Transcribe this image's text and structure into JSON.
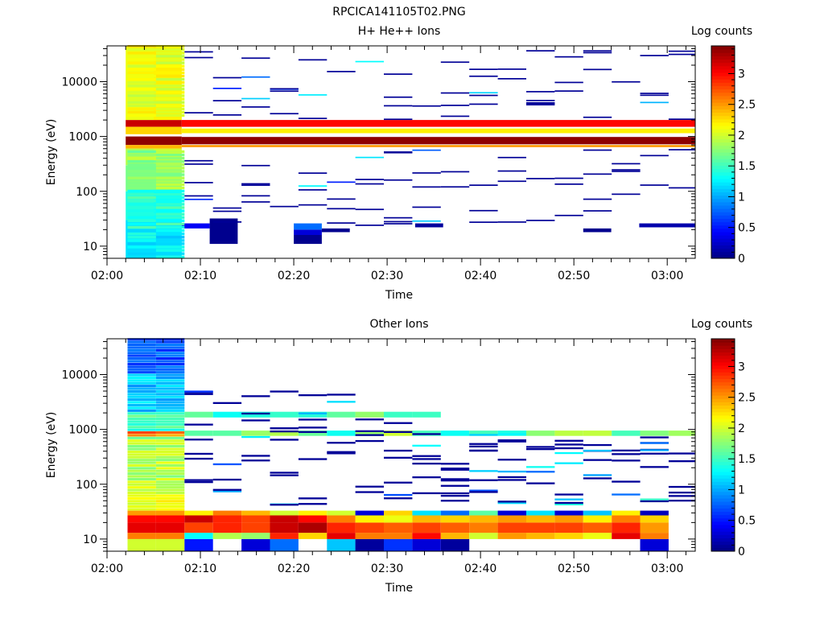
{
  "page_title": "RPCICA141105T02.PNG",
  "colors": {
    "colormap": "jet",
    "background": "#ffffff",
    "axis": "#000000"
  },
  "chart_data": [
    {
      "type": "heatmap",
      "title": "H+ He++ Ions",
      "xlabel": "Time",
      "ylabel": "Energy (eV)",
      "colorbar_label": "Log counts",
      "yscale": "log",
      "x_range": [
        "02:00",
        "03:03"
      ],
      "y_range_eV": [
        6,
        45000
      ],
      "color_range": [
        0,
        3.45
      ],
      "x_ticks": [
        "02:00",
        "02:10",
        "02:20",
        "02:30",
        "02:40",
        "02:50",
        "03:00"
      ],
      "y_ticks": [
        "10",
        "100",
        "1000",
        "10000"
      ],
      "colorbar_ticks": [
        "0",
        "0.5",
        "1",
        "1.5",
        "2",
        "2.5",
        "3"
      ],
      "columns": [
        {
          "start": "02:02",
          "end": "02:05",
          "bands": [
            [
              1500,
              2000,
              3.2
            ],
            [
              1100,
              1500,
              2.3
            ],
            [
              700,
              1000,
              3.4
            ],
            [
              600,
              700,
              2.4
            ],
            [
              300,
              600,
              1.9
            ],
            [
              100,
              300,
              1.7
            ],
            [
              30,
              100,
              1.4
            ],
            [
              6,
              30,
              1.2
            ],
            [
              2000,
              45000,
              2.1
            ]
          ]
        },
        {
          "start": "02:05",
          "end": "02:08",
          "bands": [
            [
              1500,
              2000,
              3.2
            ],
            [
              1100,
              1500,
              2.3
            ],
            [
              700,
              1000,
              3.4
            ],
            [
              600,
              700,
              2.4
            ],
            [
              300,
              600,
              2.0
            ],
            [
              100,
              300,
              1.7
            ],
            [
              30,
              100,
              1.3
            ],
            [
              6,
              30,
              1.2
            ],
            [
              2000,
              45000,
              2.2
            ]
          ]
        },
        {
          "start": "02:08",
          "end": "03:03",
          "bands": [
            [
              1500,
              2000,
              3.0
            ],
            [
              1150,
              1400,
              2.2
            ],
            [
              720,
              980,
              3.4
            ],
            [
              640,
              700,
              2.5
            ]
          ]
        },
        {
          "start": "02:11",
          "end": "02:14",
          "bands": [
            [
              11,
              32,
              0.05
            ]
          ]
        },
        {
          "start": "02:08",
          "end": "02:11",
          "bands": [
            [
              21,
              26,
              0.4
            ]
          ]
        },
        {
          "start": "02:20",
          "end": "02:23",
          "bands": [
            [
              11,
              16,
              0.05
            ],
            [
              16,
              20,
              0.3
            ],
            [
              20,
              26,
              0.8
            ]
          ]
        },
        {
          "start": "02:23",
          "end": "02:26",
          "bands": [
            [
              18,
              21,
              0.05
            ]
          ]
        },
        {
          "start": "02:33",
          "end": "02:36",
          "bands": [
            [
              22,
              26,
              0.1
            ]
          ]
        },
        {
          "start": "02:51",
          "end": "02:54",
          "bands": [
            [
              18,
              21,
              0.05
            ]
          ]
        },
        {
          "start": "02:57",
          "end": "03:03",
          "bands": [
            [
              22,
              26,
              0.15
            ]
          ]
        }
      ]
    },
    {
      "type": "heatmap",
      "title": "Other Ions",
      "xlabel": "Time",
      "ylabel": "Energy (eV)",
      "colorbar_label": "Log counts",
      "yscale": "log",
      "x_range": [
        "02:00",
        "03:03"
      ],
      "y_range_eV": [
        6,
        45000
      ],
      "color_range": [
        0,
        3.45
      ],
      "x_ticks": [
        "02:00",
        "02:10",
        "02:20",
        "02:30",
        "02:40",
        "02:50",
        "03:00"
      ],
      "y_ticks": [
        "10",
        "100",
        "1000",
        "10000"
      ],
      "colorbar_ticks": [
        "0",
        "0.5",
        "1",
        "1.5",
        "2",
        "2.5",
        "3"
      ],
      "low_energy_rows": [
        {
          "e_lo": 6,
          "e_hi": 10,
          "values": [
            2.0,
            2.0,
            0.5,
            null,
            0.3,
            0.8,
            null,
            1.1,
            0.1,
            0.6,
            0.3,
            0.1,
            null,
            null,
            null,
            null,
            null,
            null,
            0.3
          ]
        },
        {
          "e_lo": 10,
          "e_hi": 13,
          "values": [
            2.6,
            2.6,
            1.3,
            1.9,
            1.8,
            2.9,
            2.3,
            3.1,
            2.6,
            2.6,
            3.0,
            2.4,
            2.0,
            2.5,
            2.4,
            2.3,
            2.1,
            3.1,
            2.6
          ]
        },
        {
          "e_lo": 13,
          "e_hi": 20,
          "values": [
            3.1,
            3.1,
            2.8,
            2.9,
            2.8,
            3.2,
            3.3,
            2.9,
            2.8,
            2.7,
            2.8,
            2.7,
            2.6,
            2.8,
            2.8,
            2.8,
            2.7,
            2.9,
            2.5
          ]
        },
        {
          "e_lo": 20,
          "e_hi": 27,
          "values": [
            3.0,
            3.0,
            3.2,
            2.9,
            2.8,
            3.2,
            3.0,
            2.6,
            2.2,
            2.1,
            2.4,
            2.3,
            2.4,
            2.5,
            2.4,
            2.5,
            2.2,
            2.6,
            2.3
          ]
        },
        {
          "e_lo": 27,
          "e_hi": 33,
          "values": [
            2.5,
            2.5,
            2.2,
            2.6,
            2.4,
            2.0,
            2.2,
            2.0,
            0.3,
            2.3,
            1.2,
            0.8,
            1.6,
            0.3,
            1.2,
            0.3,
            1.1,
            2.2,
            0.2
          ]
        }
      ]
    }
  ]
}
